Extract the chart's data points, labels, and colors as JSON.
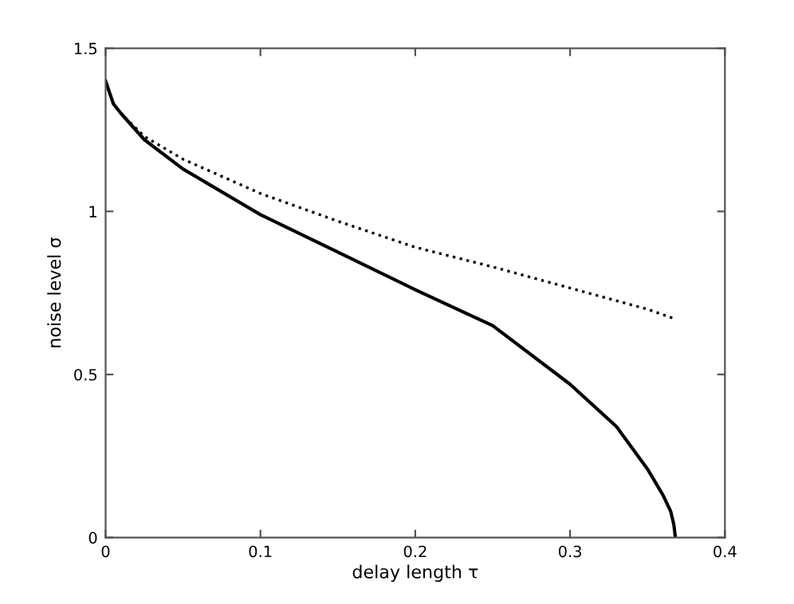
{
  "chart_data": {
    "type": "line",
    "xlabel": "delay length τ",
    "ylabel": "noise level σ",
    "xlim": [
      0,
      0.4
    ],
    "ylim": [
      0,
      1.5
    ],
    "xticks": [
      0,
      0.1,
      0.2,
      0.3,
      0.4
    ],
    "yticks": [
      0,
      0.5,
      1,
      1.5
    ],
    "grid": false,
    "legend": false,
    "marker": "none",
    "series": [
      {
        "color": "#000000",
        "line_style": "solid",
        "x": [
          0,
          0.005,
          0.01,
          0.025,
          0.05,
          0.1,
          0.15,
          0.2,
          0.25,
          0.3,
          0.33,
          0.35,
          0.36,
          0.365,
          0.367,
          0.368
        ],
        "values": [
          1.4,
          1.33,
          1.3,
          1.22,
          1.13,
          0.99,
          0.875,
          0.76,
          0.65,
          0.47,
          0.34,
          0.21,
          0.13,
          0.08,
          0.04,
          0
        ]
      },
      {
        "color": "#000000",
        "line_style": "dotted",
        "x": [
          0,
          0.005,
          0.01,
          0.025,
          0.05,
          0.1,
          0.15,
          0.2,
          0.25,
          0.3,
          0.35,
          0.368
        ],
        "values": [
          1.4,
          1.33,
          1.3,
          1.23,
          1.16,
          1.055,
          0.97,
          0.89,
          0.83,
          0.765,
          0.7,
          0.67
        ]
      }
    ]
  }
}
